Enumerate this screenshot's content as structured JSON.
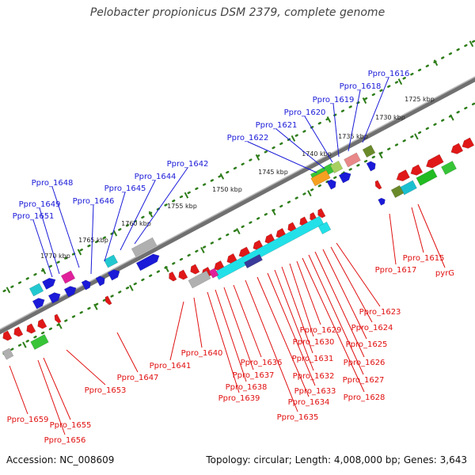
{
  "title": "Pelobacter propionicus DSM 2379, complete genome",
  "footer": {
    "accession": "Accession: NC_008609",
    "topology": "Topology: circular; Length: 4,008,000 bp; Genes: 3,643"
  },
  "colors": {
    "plus_label": "#1a1ad8",
    "minus_label": "#e01010",
    "tick": "#2e7d1a",
    "backbone": "#707070"
  },
  "kbp_ticks": [
    "1725 kbp",
    "1730 kbp",
    "1735 kbp",
    "1740 kbp",
    "1745 kbp",
    "1750 kbp",
    "1755 kbp",
    "1760 kbp",
    "1765 kbp",
    "1770 kbp"
  ],
  "plus_genes": [
    "Ppro_1616",
    "Ppro_1618",
    "Ppro_1619",
    "Ppro_1620",
    "Ppro_1621",
    "Ppro_1622",
    "Ppro_1642",
    "Ppro_1644",
    "Ppro_1645",
    "Ppro_1646",
    "Ppro_1648",
    "Ppro_1649",
    "Ppro_1651"
  ],
  "minus_genes": [
    "Ppro_1615",
    "pyrG",
    "Ppro_1617",
    "Ppro_1623",
    "Ppro_1624",
    "Ppro_1625",
    "Ppro_1626",
    "Ppro_1627",
    "Ppro_1628",
    "Ppro_1629",
    "Ppro_1630",
    "Ppro_1631",
    "Ppro_1632",
    "Ppro_1633",
    "Ppro_1634",
    "Ppro_1635",
    "Ppro_1636",
    "Ppro_1637",
    "Ppro_1638",
    "Ppro_1639",
    "Ppro_1640",
    "Ppro_1641",
    "Ppro_1647",
    "Ppro_1653",
    "Ppro_1655",
    "Ppro_1656",
    "Ppro_1659"
  ]
}
